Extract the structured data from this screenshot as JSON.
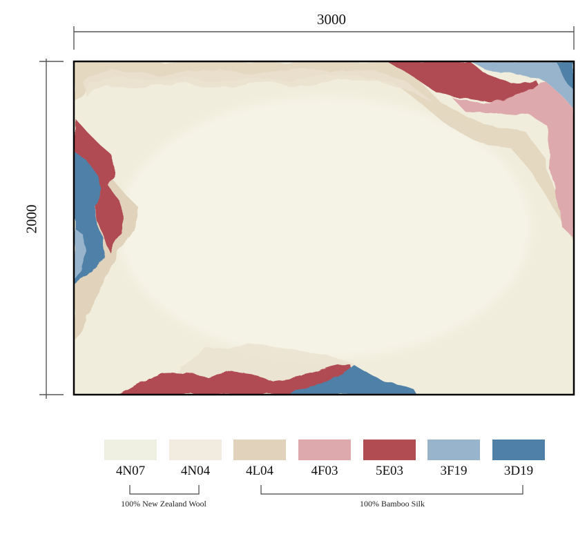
{
  "dimensions": {
    "width_label": "3000",
    "height_label": "2000"
  },
  "colors": {
    "field": "#f0eddc",
    "border": "#000000",
    "dimension_line": "#555555"
  },
  "swatches": [
    {
      "code": "4N07",
      "color": "#f0f0e2"
    },
    {
      "code": "4N04",
      "color": "#f2ece0"
    },
    {
      "code": "4L04",
      "color": "#e1d3bb"
    },
    {
      "code": "4F03",
      "color": "#dea9ac"
    },
    {
      "code": "5E03",
      "color": "#b04c52"
    },
    {
      "code": "3F19",
      "color": "#98b4cc"
    },
    {
      "code": "3D19",
      "color": "#4f81a8"
    }
  ],
  "materials": [
    {
      "label": "100% New Zealand Wool"
    },
    {
      "label": "100% Bamboo Silk"
    }
  ]
}
